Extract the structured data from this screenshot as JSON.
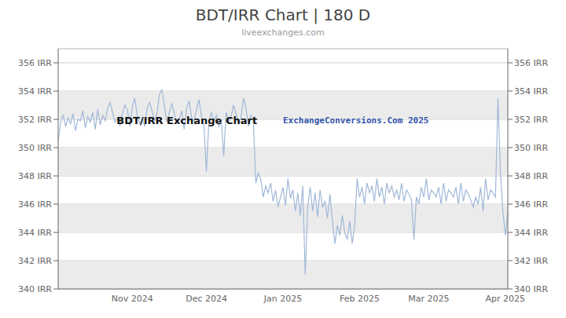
{
  "chart_data": {
    "type": "line",
    "title": "BDT/IRR Chart | 180 D",
    "subtitle": "liveexchanges.com",
    "annotations": [
      "BDT/IRR Exchange Chart",
      "ExchangeConversions.Com 2025"
    ],
    "color": "#a0b8d8",
    "grid": true,
    "ylim": [
      340,
      357
    ],
    "yticks": [
      {
        "value": 340,
        "label": "340 IRR"
      },
      {
        "value": 342,
        "label": "342 IRR"
      },
      {
        "value": 344,
        "label": "344 IRR"
      },
      {
        "value": 346,
        "label": "346 IRR"
      },
      {
        "value": 348,
        "label": "348 IRR"
      },
      {
        "value": 350,
        "label": "350 IRR"
      },
      {
        "value": 352,
        "label": "352 IRR"
      },
      {
        "value": 354,
        "label": "354 IRR"
      },
      {
        "value": 356,
        "label": "356 IRR"
      }
    ],
    "y2lim": [
      340,
      357
    ],
    "y2ticks": [
      {
        "value": 340,
        "label": "340 IRR"
      },
      {
        "value": 342,
        "label": "342 IRR"
      },
      {
        "value": 344,
        "label": "344 IRR"
      },
      {
        "value": 346,
        "label": "346 IRR"
      },
      {
        "value": 348,
        "label": "348 IRR"
      },
      {
        "value": 350,
        "label": "350 IRR"
      },
      {
        "value": 352,
        "label": "352 IRR"
      },
      {
        "value": 354,
        "label": "354 IRR"
      },
      {
        "value": 356,
        "label": "356 IRR"
      }
    ],
    "categories": [
      null,
      null,
      null,
      null,
      null,
      null,
      null,
      null,
      null,
      null,
      null,
      null,
      null,
      null,
      null,
      null,
      null,
      null,
      null,
      null,
      null,
      null,
      null,
      null,
      null,
      null,
      null,
      null,
      null,
      null,
      "Nov 2024",
      null,
      null,
      null,
      null,
      null,
      null,
      null,
      null,
      null,
      null,
      null,
      null,
      null,
      null,
      null,
      null,
      null,
      null,
      null,
      null,
      null,
      null,
      null,
      null,
      null,
      null,
      null,
      null,
      null,
      "Dec 2024",
      null,
      null,
      null,
      null,
      null,
      null,
      null,
      null,
      null,
      null,
      null,
      null,
      null,
      null,
      null,
      null,
      null,
      null,
      null,
      null,
      null,
      null,
      null,
      null,
      null,
      null,
      null,
      null,
      null,
      null,
      "Jan 2025",
      null,
      null,
      null,
      null,
      null,
      null,
      null,
      null,
      null,
      null,
      null,
      null,
      null,
      null,
      null,
      null,
      null,
      null,
      null,
      null,
      null,
      null,
      null,
      null,
      null,
      null,
      null,
      null,
      null,
      null,
      "Feb 2025",
      null,
      null,
      null,
      null,
      null,
      null,
      null,
      null,
      null,
      null,
      null,
      null,
      null,
      null,
      null,
      null,
      null,
      null,
      null,
      null,
      null,
      null,
      null,
      null,
      null,
      null,
      null,
      "Mar 2025",
      null,
      null,
      null,
      null,
      null,
      null,
      null,
      null,
      null,
      null,
      null,
      null,
      null,
      null,
      null,
      null,
      null,
      null,
      null,
      null,
      null,
      null,
      null,
      null,
      null,
      null,
      null,
      null,
      null,
      null,
      "Apr 2025",
      null
    ],
    "values": [
      350.5,
      351.8,
      352.3,
      351.5,
      352.1,
      351.7,
      352.4,
      351.2,
      352.0,
      351.9,
      352.6,
      351.4,
      352.2,
      351.8,
      352.5,
      351.3,
      352.7,
      351.6,
      352.3,
      351.9,
      352.8,
      353.2,
      352.5,
      351.8,
      352.1,
      351.6,
      352.4,
      353.0,
      352.7,
      351.5,
      352.9,
      353.5,
      352.3,
      351.7,
      352.1,
      351.5,
      352.8,
      353.2,
      352.6,
      351.9,
      352.4,
      353.8,
      354.1,
      352.9,
      351.8,
      352.5,
      353.1,
      352.4,
      351.7,
      352.0,
      352.6,
      351.3,
      352.8,
      353.3,
      352.1,
      351.9,
      352.7,
      353.4,
      352.2,
      351.6,
      348.3,
      351.9,
      352.5,
      351.8,
      352.3,
      351.5,
      352.0,
      349.4,
      352.5,
      351.8,
      352.2,
      353.0,
      352.4,
      351.7,
      352.1,
      353.5,
      352.8,
      351.5,
      352.3,
      351.9,
      347.5,
      348.2,
      347.8,
      346.5,
      347.3,
      346.8,
      347.5,
      346.2,
      347.0,
      345.8,
      346.5,
      347.2,
      345.9,
      347.8,
      346.4,
      347.0,
      345.5,
      346.8,
      345.2,
      347.3,
      341.0,
      345.8,
      347.2,
      345.5,
      346.8,
      345.1,
      347.0,
      345.8,
      346.2,
      345.0,
      346.7,
      344.8,
      343.2,
      344.5,
      343.8,
      345.2,
      344.0,
      343.5,
      344.8,
      343.2,
      344.5,
      347.8,
      346.5,
      347.2,
      346.0,
      347.5,
      346.8,
      347.3,
      346.2,
      347.8,
      346.5,
      347.2,
      346.0,
      347.5,
      346.8,
      347.3,
      346.5,
      347.0,
      346.3,
      347.5,
      346.2,
      347.0,
      346.7,
      346.3,
      343.5,
      346.5,
      346.0,
      347.2,
      346.5,
      347.8,
      346.3,
      347.0,
      346.8,
      346.5,
      347.2,
      346.0,
      347.5,
      346.2,
      347.0,
      346.8,
      346.5,
      347.2,
      346.0,
      347.5,
      346.2,
      347.0,
      346.7,
      346.3,
      345.8,
      346.5,
      346.0,
      347.2,
      345.5,
      347.8,
      346.3,
      347.0,
      346.8,
      346.5,
      353.5,
      348.2,
      345.5,
      343.8,
      345.5
    ]
  }
}
